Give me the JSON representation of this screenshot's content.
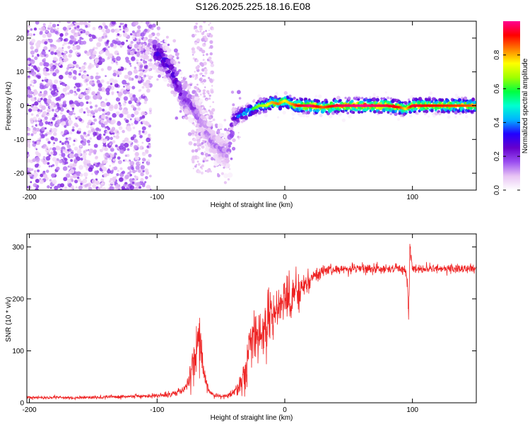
{
  "title": "S126.2025.225.18.16.E08",
  "chart_data": [
    {
      "type": "heatmap",
      "xlabel": "Height of straight line (km)",
      "ylabel": "Frequency (Hz)",
      "xlim": [
        -202,
        150
      ],
      "ylim": [
        -25,
        25
      ],
      "xticks": [
        -200,
        -100,
        0,
        100
      ],
      "yticks": [
        -20,
        -10,
        0,
        10,
        20
      ],
      "colorbar": {
        "label": "Normalized spectral amplitude",
        "range": [
          0,
          1
        ],
        "ticks": [
          "0.0",
          "0.2",
          "0.4",
          "0.6",
          "0.8"
        ],
        "tick_values": [
          0,
          0.2,
          0.4,
          0.6,
          0.8
        ],
        "colormap": [
          "#ffffff",
          "#e8c4f4",
          "#9a4df0",
          "#6600cc",
          "#2200ff",
          "#00b4ff",
          "#00ffd0",
          "#00ff40",
          "#a0ff00",
          "#ffff00",
          "#ff8000",
          "#ff0000",
          "#ff0090"
        ]
      },
      "ridge": {
        "x": [
          -102,
          -95,
          -88,
          -80,
          -72,
          -65,
          -58,
          -50,
          -44,
          -40,
          -36,
          -30,
          -25,
          -20,
          -15,
          -10,
          -5,
          0,
          5,
          10,
          20,
          30,
          40,
          60,
          80,
          90,
          95,
          100,
          120,
          150
        ],
        "freq": [
          16,
          14,
          10,
          3,
          0,
          -5,
          -10,
          -13,
          -14,
          -4,
          -3,
          -2,
          -1,
          0,
          0,
          1,
          0.5,
          1.5,
          0.5,
          0,
          0,
          -0.5,
          0,
          0,
          0,
          -0.5,
          -1,
          0,
          0,
          0
        ],
        "amplitude": [
          0.3,
          0.35,
          0.3,
          0.25,
          0.2,
          0.15,
          0.15,
          0.15,
          0.15,
          0.3,
          0.45,
          0.5,
          0.55,
          0.6,
          0.65,
          0.75,
          0.8,
          0.7,
          0.75,
          0.85,
          0.95,
          0.8,
          0.9,
          0.95,
          0.9,
          0.85,
          0.7,
          0.9,
          0.85,
          0.8
        ]
      },
      "noise_region": {
        "x": [
          -202,
          -105
        ],
        "note": "scattered low-amplitude noise"
      }
    },
    {
      "type": "line",
      "xlabel": "Height of straight line (km)",
      "ylabel": "SNR (10 * v/v)",
      "xlim": [
        -202,
        150
      ],
      "ylim": [
        0,
        325
      ],
      "xticks": [
        -200,
        -100,
        0,
        100
      ],
      "yticks": [
        0,
        100,
        200,
        300
      ],
      "color": "#ee2222",
      "series": [
        {
          "name": "SNR",
          "x": [
            -202,
            -180,
            -160,
            -140,
            -120,
            -100,
            -90,
            -80,
            -75,
            -70,
            -68,
            -66,
            -64,
            -62,
            -60,
            -55,
            -50,
            -45,
            -40,
            -35,
            -30,
            -28,
            -26,
            -20,
            -15,
            -10,
            -5,
            0,
            5,
            10,
            15,
            20,
            25,
            30,
            40,
            50,
            60,
            70,
            80,
            90,
            94,
            96,
            97,
            98,
            99,
            100,
            102,
            110,
            120,
            130,
            140,
            150
          ],
          "y": [
            10,
            10,
            10,
            11,
            12,
            14,
            17,
            24,
            40,
            90,
            130,
            110,
            75,
            40,
            25,
            15,
            12,
            14,
            20,
            35,
            65,
            100,
            120,
            130,
            150,
            170,
            180,
            200,
            205,
            215,
            225,
            240,
            248,
            252,
            256,
            258,
            258,
            258,
            258,
            258,
            255,
            230,
            160,
            310,
            280,
            262,
            258,
            258,
            258,
            258,
            258,
            258
          ],
          "noise": [
            3,
            3,
            3,
            3,
            3,
            4,
            5,
            8,
            15,
            40,
            40,
            40,
            30,
            15,
            8,
            5,
            4,
            5,
            8,
            20,
            40,
            50,
            50,
            50,
            50,
            50,
            45,
            45,
            40,
            35,
            25,
            18,
            12,
            10,
            8,
            8,
            8,
            8,
            8,
            8,
            8,
            15,
            15,
            15,
            15,
            10,
            8,
            8,
            8,
            8,
            8,
            8
          ]
        }
      ]
    }
  ]
}
